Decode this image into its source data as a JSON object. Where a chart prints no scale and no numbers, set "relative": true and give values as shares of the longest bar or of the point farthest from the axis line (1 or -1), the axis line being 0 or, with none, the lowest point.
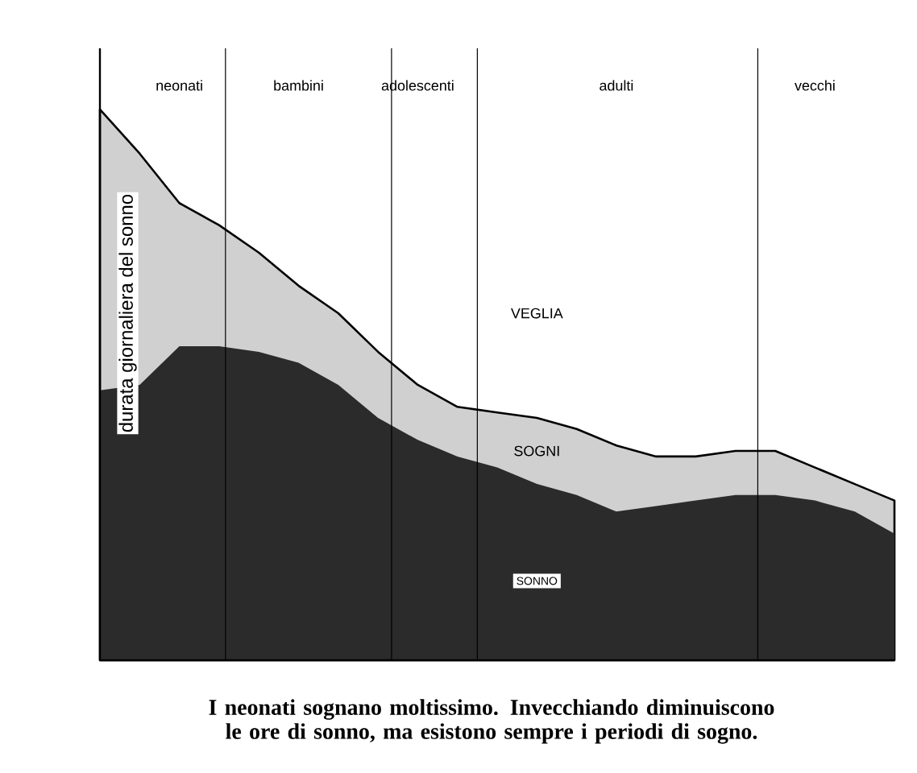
{
  "chart_data": {
    "type": "area",
    "stacked": true,
    "relative": true,
    "ylabel": "durata giornaliera del sonno",
    "categories": [
      null,
      null,
      "neonati",
      null,
      null,
      "bambini",
      null,
      null,
      "adolescenti",
      null,
      null,
      null,
      null,
      "adulti",
      null,
      null,
      null,
      null,
      "vecchi",
      null,
      null
    ],
    "tick_labels": "x",
    "series": [
      {
        "name": "SONNO",
        "color": "#2b2b2b",
        "values": [
          0.49,
          0.5,
          0.57,
          0.57,
          0.56,
          0.54,
          0.5,
          0.44,
          0.4,
          0.37,
          0.35,
          0.32,
          0.3,
          0.27,
          0.28,
          0.29,
          0.3,
          0.3,
          0.29,
          0.27,
          0.23
        ]
      },
      {
        "name": "SOGNI",
        "color": "#d0d0d0",
        "values": [
          0.51,
          0.42,
          0.26,
          0.22,
          0.18,
          0.14,
          0.13,
          0.12,
          0.1,
          0.09,
          0.1,
          0.12,
          0.12,
          0.12,
          0.09,
          0.08,
          0.08,
          0.08,
          0.06,
          0.05,
          0.06
        ]
      }
    ],
    "annotations": [
      "VEGLIA",
      "I neonati sognano moltissimo. Invecchiando diminuiscono le ore di sonno, ma esistono sempre i periodi di sogno."
    ]
  }
}
